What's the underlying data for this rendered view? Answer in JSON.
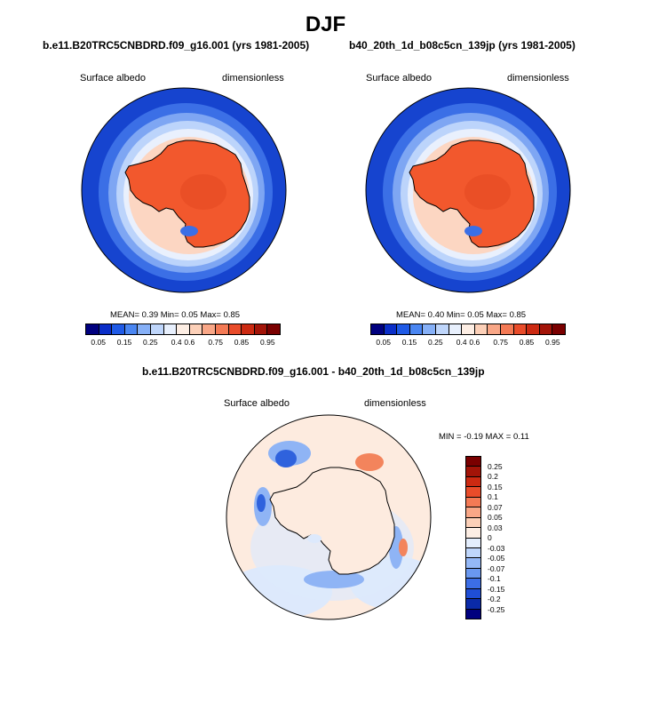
{
  "figure": {
    "title": "DJF"
  },
  "panels": [
    {
      "case_title": "b.e11.B20TRC5CNBDRD.f09_g16.001 (yrs 1981-2005)",
      "variable": "Surface albedo",
      "units": "dimensionless",
      "stats": {
        "mean_label": "MEAN=",
        "mean": "0.39",
        "min_label": "Min=",
        "min": "0.05",
        "max_label": "Max=",
        "max": "0.85"
      }
    },
    {
      "case_title": "b40_20th_1d_b08c5cn_139jp (yrs 1981-2005)",
      "variable": "Surface albedo",
      "units": "dimensionless",
      "stats": {
        "mean_label": "MEAN=",
        "mean": "0.40",
        "min_label": "Min=",
        "min": "0.05",
        "max_label": "Max=",
        "max": "0.85"
      }
    }
  ],
  "difference": {
    "title": "b.e11.B20TRC5CNBDRD.f09_g16.001 - b40_20th_1d_b08c5cn_139jp",
    "variable": "Surface albedo",
    "units": "dimensionless",
    "stats": {
      "min_label": "MIN =",
      "min": "-0.19",
      "max_label": "MAX =",
      "max": "0.11"
    }
  },
  "colorbars": {
    "absolute": {
      "colors": [
        "#00007f",
        "#0a2ec8",
        "#1f5ae6",
        "#4a86f2",
        "#86b0f7",
        "#bfd6fb",
        "#e8f0fd",
        "#fdeee4",
        "#fcd0b8",
        "#f9a787",
        "#f47a55",
        "#e94c2a",
        "#cc2a12",
        "#a31408",
        "#7a0000"
      ],
      "tick_labels": [
        "0.05",
        "0.15",
        "0.25",
        "0.4",
        "0.6",
        "0.75",
        "0.85",
        "0.95"
      ]
    },
    "difference": {
      "colors": [
        "#7a0000",
        "#a31408",
        "#cc2a12",
        "#e94c2a",
        "#f47a55",
        "#f9a787",
        "#fcd0b8",
        "#fdeee4",
        "#e4eefd",
        "#bfd6fb",
        "#94b8f7",
        "#6a98f0",
        "#3c6ee6",
        "#1f4ed6",
        "#0a2aa8",
        "#00007f"
      ],
      "tick_labels": [
        "0.25",
        "0.2",
        "0.15",
        "0.1",
        "0.07",
        "0.05",
        "0.03",
        "0",
        "-0.03",
        "-0.05",
        "-0.07",
        "-0.1",
        "-0.15",
        "-0.2",
        "-0.25"
      ]
    }
  },
  "map_colors": {
    "ocean_open": "#1644cf",
    "ice_1": "#3b6fe6",
    "ice_2": "#7ea6f3",
    "ice_3": "#bcd4fb",
    "ice_4": "#e9f0fd",
    "coast_fringe": "#fcd6c2",
    "continent": "#f2582d",
    "continent_dark": "#e54a22",
    "diff_base": "#fdebdf",
    "diff_light_blue": "#dde9fc",
    "diff_mid_blue": "#8fb4f5",
    "diff_dark_blue": "#2f62dd",
    "diff_red": "#f3845c"
  }
}
